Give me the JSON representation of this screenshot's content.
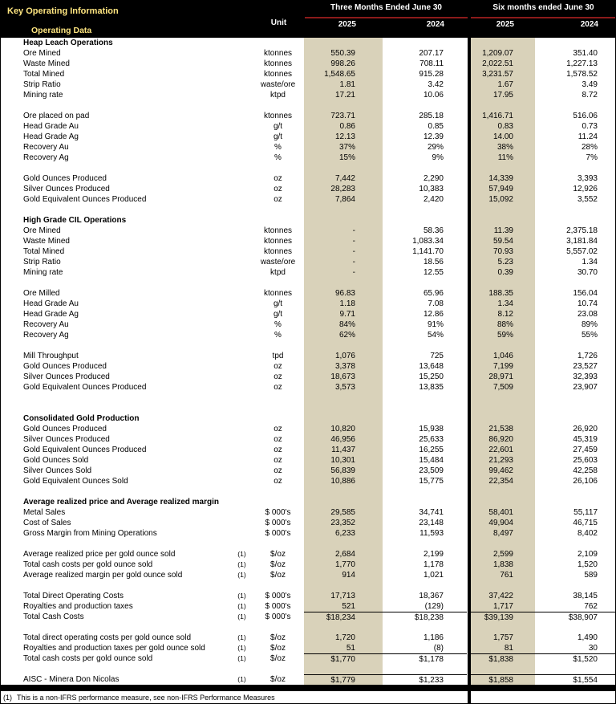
{
  "header": {
    "title": "Key Operating Information",
    "subtitle": "Operating Data",
    "unit_label": "Unit",
    "groups": [
      {
        "label": "Three Months Ended June 30",
        "years": [
          "2025",
          "2024"
        ]
      },
      {
        "label": "Six months ended June 30",
        "years": [
          "2025",
          "2024"
        ]
      }
    ]
  },
  "colors": {
    "header_bg": "#000000",
    "header_title": "#ffe680",
    "header_text": "#ffffff",
    "column_shade": "#d9d2ba",
    "group_underline": "#8b1a1a"
  },
  "rows": [
    {
      "t": "s",
      "label": "Heap Leach Operations"
    },
    {
      "t": "d",
      "label": "Ore Mined",
      "unit": "ktonnes",
      "v": [
        "550.39",
        "207.17",
        "1,209.07",
        "351.40"
      ]
    },
    {
      "t": "d",
      "label": "Waste Mined",
      "unit": "ktonnes",
      "v": [
        "998.26",
        "708.11",
        "2,022.51",
        "1,227.13"
      ]
    },
    {
      "t": "d",
      "label": "Total Mined",
      "unit": "ktonnes",
      "v": [
        "1,548.65",
        "915.28",
        "3,231.57",
        "1,578.52"
      ]
    },
    {
      "t": "d",
      "label": "Strip Ratio",
      "unit": "waste/ore",
      "v": [
        "1.81",
        "3.42",
        "1.67",
        "3.49"
      ]
    },
    {
      "t": "d",
      "label": "Mining rate",
      "unit": "ktpd",
      "v": [
        "17.21",
        "10.06",
        "17.95",
        "8.72"
      ]
    },
    {
      "t": "b"
    },
    {
      "t": "d",
      "label": "Ore placed on pad",
      "unit": "ktonnes",
      "v": [
        "723.71",
        "285.18",
        "1,416.71",
        "516.06"
      ]
    },
    {
      "t": "d",
      "label": "Head Grade Au",
      "unit": "g/t",
      "v": [
        "0.86",
        "0.85",
        "0.83",
        "0.73"
      ]
    },
    {
      "t": "d",
      "label": "Head Grade Ag",
      "unit": "g/t",
      "v": [
        "12.13",
        "12.39",
        "14.00",
        "11.24"
      ]
    },
    {
      "t": "d",
      "label": "Recovery Au",
      "unit": "%",
      "v": [
        "37%",
        "29%",
        "38%",
        "28%"
      ]
    },
    {
      "t": "d",
      "label": "Recovery Ag",
      "unit": "%",
      "v": [
        "15%",
        "9%",
        "11%",
        "7%"
      ]
    },
    {
      "t": "b"
    },
    {
      "t": "d",
      "label": "Gold Ounces Produced",
      "unit": "oz",
      "v": [
        "7,442",
        "2,290",
        "14,339",
        "3,393"
      ]
    },
    {
      "t": "d",
      "label": "Silver Ounces Produced",
      "unit": "oz",
      "v": [
        "28,283",
        "10,383",
        "57,949",
        "12,926"
      ]
    },
    {
      "t": "d",
      "label": "Gold Equivalent Ounces Produced",
      "unit": "oz",
      "v": [
        "7,864",
        "2,420",
        "15,092",
        "3,552"
      ]
    },
    {
      "t": "b"
    },
    {
      "t": "s",
      "label": "High Grade CIL Operations"
    },
    {
      "t": "d",
      "label": "Ore Mined",
      "unit": "ktonnes",
      "v": [
        "-",
        "58.36",
        "11.39",
        "2,375.18"
      ]
    },
    {
      "t": "d",
      "label": "Waste Mined",
      "unit": "ktonnes",
      "v": [
        "-",
        "1,083.34",
        "59.54",
        "3,181.84"
      ]
    },
    {
      "t": "d",
      "label": "Total Mined",
      "unit": "ktonnes",
      "v": [
        "-",
        "1,141.70",
        "70.93",
        "5,557.02"
      ]
    },
    {
      "t": "d",
      "label": "Strip Ratio",
      "unit": "waste/ore",
      "v": [
        "-",
        "18.56",
        "5.23",
        "1.34"
      ]
    },
    {
      "t": "d",
      "label": "Mining rate",
      "unit": "ktpd",
      "v": [
        "-",
        "12.55",
        "0.39",
        "30.70"
      ]
    },
    {
      "t": "b"
    },
    {
      "t": "d",
      "label": "Ore Milled",
      "unit": "ktonnes",
      "v": [
        "96.83",
        "65.96",
        "188.35",
        "156.04"
      ]
    },
    {
      "t": "d",
      "label": "Head Grade Au",
      "unit": "g/t",
      "v": [
        "1.18",
        "7.08",
        "1.34",
        "10.74"
      ]
    },
    {
      "t": "d",
      "label": "Head Grade Ag",
      "unit": "g/t",
      "v": [
        "9.71",
        "12.86",
        "8.12",
        "23.08"
      ]
    },
    {
      "t": "d",
      "label": "Recovery Au",
      "unit": "%",
      "v": [
        "84%",
        "91%",
        "88%",
        "89%"
      ]
    },
    {
      "t": "d",
      "label": "Recovery Ag",
      "unit": "%",
      "v": [
        "62%",
        "54%",
        "59%",
        "55%"
      ]
    },
    {
      "t": "b"
    },
    {
      "t": "d",
      "label": "Mill Throughput",
      "unit": "tpd",
      "v": [
        "1,076",
        "725",
        "1,046",
        "1,726"
      ]
    },
    {
      "t": "d",
      "label": "Gold Ounces Produced",
      "unit": "oz",
      "v": [
        "3,378",
        "13,648",
        "7,199",
        "23,527"
      ]
    },
    {
      "t": "d",
      "label": "Silver Ounces Produced",
      "unit": "oz",
      "v": [
        "18,673",
        "15,250",
        "28,971",
        "32,393"
      ]
    },
    {
      "t": "d",
      "label": "Gold Equivalent Ounces Produced",
      "unit": "oz",
      "v": [
        "3,573",
        "13,835",
        "7,509",
        "23,907"
      ]
    },
    {
      "t": "b"
    },
    {
      "t": "b"
    },
    {
      "t": "s",
      "label": "Consolidated Gold Production"
    },
    {
      "t": "d",
      "label": "Gold Ounces Produced",
      "unit": "oz",
      "v": [
        "10,820",
        "15,938",
        "21,538",
        "26,920"
      ]
    },
    {
      "t": "d",
      "label": "Silver Ounces Produced",
      "unit": "oz",
      "v": [
        "46,956",
        "25,633",
        "86,920",
        "45,319"
      ]
    },
    {
      "t": "d",
      "label": "Gold Equivalent Ounces Produced",
      "unit": "oz",
      "v": [
        "11,437",
        "16,255",
        "22,601",
        "27,459"
      ]
    },
    {
      "t": "d",
      "label": "Gold Ounces Sold",
      "unit": "oz",
      "v": [
        "10,301",
        "15,484",
        "21,293",
        "25,603"
      ]
    },
    {
      "t": "d",
      "label": "Silver Ounces Sold",
      "unit": "oz",
      "v": [
        "56,839",
        "23,509",
        "99,462",
        "42,258"
      ]
    },
    {
      "t": "d",
      "label": "Gold Equivalent Ounces Sold",
      "unit": "oz",
      "v": [
        "10,886",
        "15,775",
        "22,354",
        "26,106"
      ]
    },
    {
      "t": "b"
    },
    {
      "t": "s",
      "label": "Average realized price and Average realized margin"
    },
    {
      "t": "d",
      "label": "Metal Sales",
      "unit": "$ 000's",
      "v": [
        "29,585",
        "34,741",
        "58,401",
        "55,117"
      ]
    },
    {
      "t": "d",
      "label": "Cost of Sales",
      "unit": "$ 000's",
      "v": [
        "23,352",
        "23,148",
        "49,904",
        "46,715"
      ]
    },
    {
      "t": "d",
      "label": "Gross Margin from Mining Operations",
      "unit": "$ 000's",
      "v": [
        "6,233",
        "11,593",
        "8,497",
        "8,402"
      ]
    },
    {
      "t": "b"
    },
    {
      "t": "d",
      "label": "Average realized price per gold ounce sold",
      "note": "(1)",
      "unit": "$/oz",
      "v": [
        "2,684",
        "2,199",
        "2,599",
        "2,109"
      ]
    },
    {
      "t": "d",
      "label": "Total cash costs per gold ounce sold",
      "note": "(1)",
      "unit": "$/oz",
      "v": [
        "1,770",
        "1,178",
        "1,838",
        "1,520"
      ]
    },
    {
      "t": "d",
      "label": "Average realized margin per gold ounce sold",
      "note": "(1)",
      "unit": "$/oz",
      "v": [
        "914",
        "1,021",
        "761",
        "589"
      ]
    },
    {
      "t": "b"
    },
    {
      "t": "d",
      "label": "Total Direct Operating Costs",
      "note": "(1)",
      "unit": "$ 000's",
      "v": [
        "17,713",
        "18,367",
        "37,422",
        "38,145"
      ]
    },
    {
      "t": "d",
      "label": "Royalties and production taxes",
      "note": "(1)",
      "unit": "$ 000's",
      "v": [
        "521",
        "(129)",
        "1,717",
        "762"
      ]
    },
    {
      "t": "d",
      "label": "Total Cash Costs",
      "note": "(1)",
      "unit": "$ 000's",
      "top": true,
      "v": [
        "$18,234",
        "$18,238",
        "$39,139",
        "$38,907"
      ]
    },
    {
      "t": "b"
    },
    {
      "t": "d",
      "label": "Total direct operating costs per gold ounce sold",
      "note": "(1)",
      "unit": "$/oz",
      "v": [
        "1,720",
        "1,186",
        "1,757",
        "1,490"
      ]
    },
    {
      "t": "d",
      "label": "Royalties and production taxes per gold ounce sold",
      "note": "(1)",
      "unit": "$/oz",
      "v": [
        "51",
        "(8)",
        "81",
        "30"
      ]
    },
    {
      "t": "d",
      "label": "Total cash costs per gold ounce sold",
      "note": "(1)",
      "unit": "$/oz",
      "top": true,
      "v": [
        "$1,770",
        "$1,178",
        "$1,838",
        "$1,520"
      ]
    },
    {
      "t": "b"
    },
    {
      "t": "d",
      "label": "AISC - Minera Don Nicolas",
      "note": "(1)",
      "unit": "$/oz",
      "top": true,
      "v": [
        "$1,779",
        "$1,233",
        "$1,858",
        "$1,554"
      ]
    }
  ],
  "footnote": {
    "marker": "(1)",
    "text": "This is a non-IFRS performance measure, see non-IFRS Performance Measures"
  }
}
